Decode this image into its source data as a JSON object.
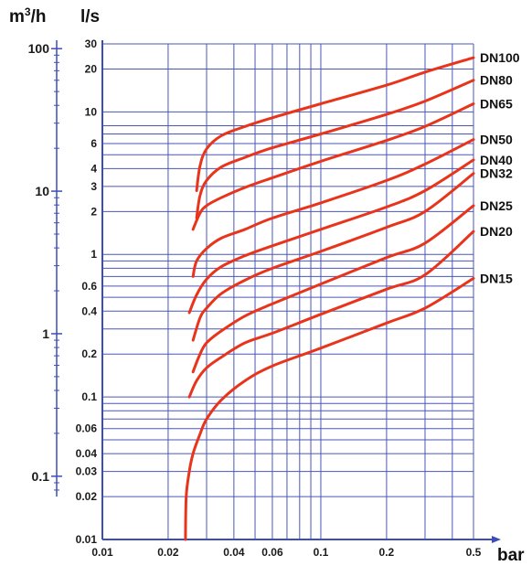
{
  "chart_data": {
    "type": "line",
    "title": "",
    "x_scale": "log",
    "y_scale": "log",
    "xlim": [
      0.01,
      0.5
    ],
    "ylim": [
      0.01,
      30
    ],
    "xlabel": "bar",
    "ylabel": "l/s",
    "y2label_main": "m³/h",
    "x_ticks": [
      {
        "value": 0.01,
        "label": "0.01"
      },
      {
        "value": 0.02,
        "label": "0.02"
      },
      {
        "value": 0.04,
        "label": "0.04"
      },
      {
        "value": 0.06,
        "label": "0.06"
      },
      {
        "value": 0.1,
        "label": "0.1"
      },
      {
        "value": 0.2,
        "label": "0.2"
      },
      {
        "value": 0.5,
        "label": "0.5"
      }
    ],
    "x_minor_grid": [
      0.03,
      0.05,
      0.07,
      0.08,
      0.09,
      0.3,
      0.4
    ],
    "y_ticks": [
      {
        "value": 30,
        "label": "30"
      },
      {
        "value": 20,
        "label": "20"
      },
      {
        "value": 10,
        "label": "10"
      },
      {
        "value": 6,
        "label": "6"
      },
      {
        "value": 4,
        "label": "4"
      },
      {
        "value": 3,
        "label": "3"
      },
      {
        "value": 2,
        "label": "2"
      },
      {
        "value": 1,
        "label": "1"
      },
      {
        "value": 0.6,
        "label": "0.6"
      },
      {
        "value": 0.4,
        "label": "0.4"
      },
      {
        "value": 0.2,
        "label": "0.2"
      },
      {
        "value": 0.1,
        "label": "0.1"
      },
      {
        "value": 0.06,
        "label": "0.06"
      },
      {
        "value": 0.04,
        "label": "0.04"
      },
      {
        "value": 0.03,
        "label": "0.03"
      },
      {
        "value": 0.02,
        "label": "0.02"
      },
      {
        "value": 0.01,
        "label": "0.01"
      }
    ],
    "y_minor_grid": [
      8,
      7,
      5,
      0.9,
      0.8,
      0.7,
      0.5,
      0.3,
      0.09,
      0.08,
      0.07,
      0.05
    ],
    "left_axis": {
      "label": "m³/h",
      "ticks": [
        {
          "value_ls": 27.78,
          "label": "100"
        },
        {
          "value_ls": 2.778,
          "label": "10"
        },
        {
          "value_ls": 0.2778,
          "label": "1"
        },
        {
          "value_ls": 0.02778,
          "label": "0.1"
        }
      ]
    },
    "series": [
      {
        "name": "DN100",
        "points": [
          [
            0.027,
            2.8
          ],
          [
            0.028,
            4.2
          ],
          [
            0.03,
            5.5
          ],
          [
            0.035,
            6.8
          ],
          [
            0.045,
            7.9
          ],
          [
            0.06,
            9.1
          ],
          [
            0.1,
            11.4
          ],
          [
            0.2,
            15.4
          ],
          [
            0.3,
            19
          ],
          [
            0.5,
            24
          ]
        ]
      },
      {
        "name": "DN80",
        "points": [
          [
            0.027,
            1.8
          ],
          [
            0.028,
            2.6
          ],
          [
            0.03,
            3.3
          ],
          [
            0.035,
            4.1
          ],
          [
            0.045,
            4.8
          ],
          [
            0.06,
            5.6
          ],
          [
            0.1,
            7.0
          ],
          [
            0.2,
            9.6
          ],
          [
            0.3,
            11.9
          ],
          [
            0.5,
            16.7
          ]
        ]
      },
      {
        "name": "DN65",
        "points": [
          [
            0.026,
            1.5
          ],
          [
            0.028,
            1.95
          ],
          [
            0.03,
            2.2
          ],
          [
            0.035,
            2.5
          ],
          [
            0.045,
            2.95
          ],
          [
            0.06,
            3.45
          ],
          [
            0.1,
            4.5
          ],
          [
            0.2,
            6.3
          ],
          [
            0.3,
            7.9
          ],
          [
            0.5,
            11.4
          ]
        ]
      },
      {
        "name": "DN50",
        "points": [
          [
            0.026,
            0.7
          ],
          [
            0.027,
            0.9
          ],
          [
            0.03,
            1.1
          ],
          [
            0.035,
            1.3
          ],
          [
            0.045,
            1.5
          ],
          [
            0.06,
            1.8
          ],
          [
            0.1,
            2.3
          ],
          [
            0.2,
            3.3
          ],
          [
            0.3,
            4.3
          ],
          [
            0.5,
            6.4
          ]
        ]
      },
      {
        "name": "DN40",
        "points": [
          [
            0.025,
            0.39
          ],
          [
            0.027,
            0.52
          ],
          [
            0.03,
            0.67
          ],
          [
            0.035,
            0.82
          ],
          [
            0.045,
            0.98
          ],
          [
            0.06,
            1.15
          ],
          [
            0.1,
            1.5
          ],
          [
            0.2,
            2.15
          ],
          [
            0.3,
            2.8
          ],
          [
            0.5,
            4.6
          ]
        ]
      },
      {
        "name": "DN32",
        "points": [
          [
            0.026,
            0.25
          ],
          [
            0.028,
            0.36
          ],
          [
            0.03,
            0.42
          ],
          [
            0.035,
            0.53
          ],
          [
            0.045,
            0.66
          ],
          [
            0.06,
            0.8
          ],
          [
            0.1,
            1.05
          ],
          [
            0.2,
            1.55
          ],
          [
            0.3,
            2.0
          ],
          [
            0.5,
            3.7
          ]
        ]
      },
      {
        "name": "DN25",
        "points": [
          [
            0.026,
            0.15
          ],
          [
            0.028,
            0.2
          ],
          [
            0.03,
            0.24
          ],
          [
            0.035,
            0.29
          ],
          [
            0.045,
            0.37
          ],
          [
            0.06,
            0.45
          ],
          [
            0.1,
            0.62
          ],
          [
            0.2,
            0.95
          ],
          [
            0.3,
            1.2
          ],
          [
            0.5,
            2.2
          ]
        ]
      },
      {
        "name": "DN20",
        "points": [
          [
            0.025,
            0.1
          ],
          [
            0.027,
            0.13
          ],
          [
            0.03,
            0.16
          ],
          [
            0.035,
            0.19
          ],
          [
            0.045,
            0.24
          ],
          [
            0.06,
            0.28
          ],
          [
            0.1,
            0.38
          ],
          [
            0.2,
            0.57
          ],
          [
            0.3,
            0.72
          ],
          [
            0.5,
            1.45
          ]
        ]
      },
      {
        "name": "DN15",
        "points": [
          [
            0.024,
            0.01
          ],
          [
            0.0242,
            0.02
          ],
          [
            0.025,
            0.03
          ],
          [
            0.026,
            0.04
          ],
          [
            0.028,
            0.055
          ],
          [
            0.03,
            0.07
          ],
          [
            0.035,
            0.095
          ],
          [
            0.045,
            0.13
          ],
          [
            0.06,
            0.165
          ],
          [
            0.1,
            0.22
          ],
          [
            0.2,
            0.33
          ],
          [
            0.3,
            0.42
          ],
          [
            0.5,
            0.68
          ]
        ]
      }
    ],
    "colors": {
      "curve": "#e8341b",
      "grid": "#4a56b8",
      "axis": "#3d4db8"
    },
    "grid": true
  }
}
